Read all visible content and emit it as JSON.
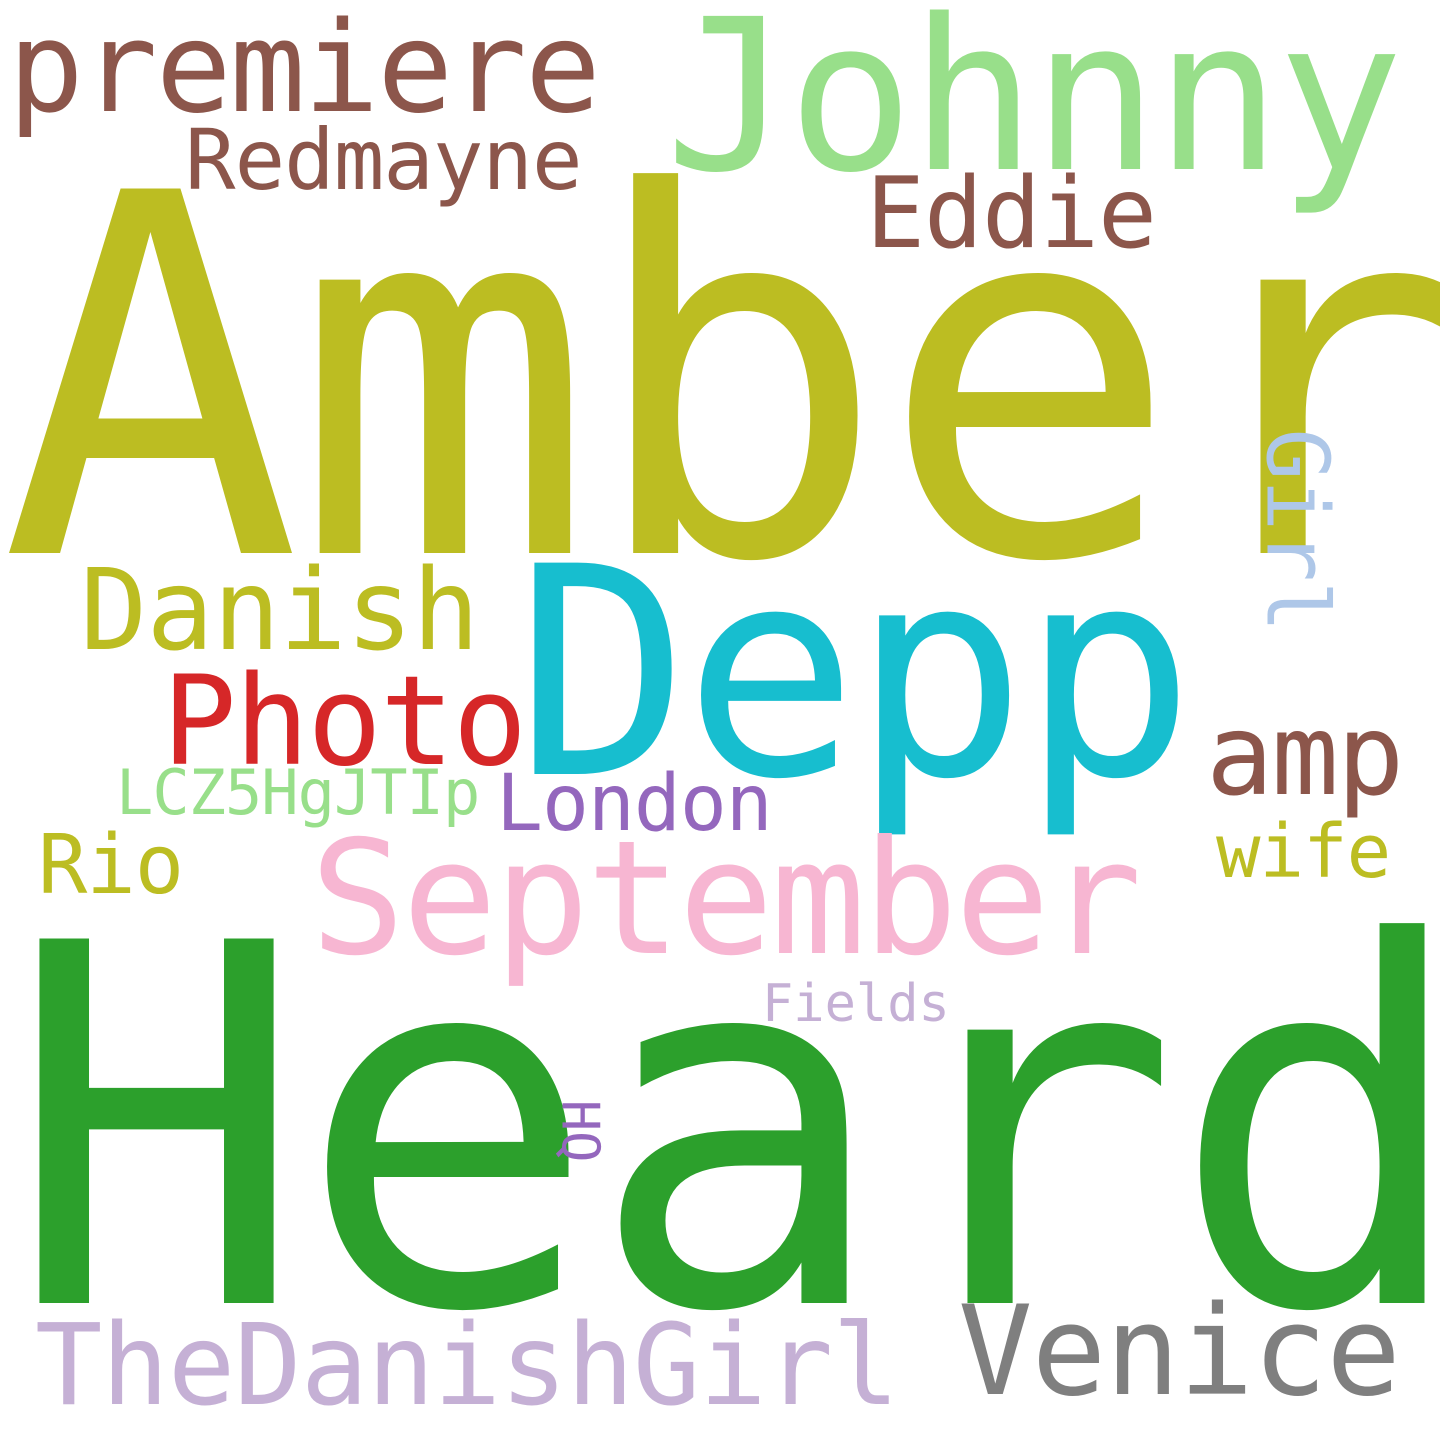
{
  "wordcloud": {
    "words": [
      {
        "text": "Amber",
        "color": "#bcbd22"
      },
      {
        "text": "Heard",
        "color": "#2ca02c"
      },
      {
        "text": "Depp",
        "color": "#17becf"
      },
      {
        "text": "Johnny",
        "color": "#98df8a"
      },
      {
        "text": "premiere",
        "color": "#8c564b"
      },
      {
        "text": "September",
        "color": "#f7b6d2"
      },
      {
        "text": "TheDanishGirl",
        "color": "#c5b0d5"
      },
      {
        "text": "Venice",
        "color": "#7f7f7f"
      },
      {
        "text": "Photo",
        "color": "#d62728"
      },
      {
        "text": "Danish",
        "color": "#bcbd22"
      },
      {
        "text": "Redmayne",
        "color": "#8c564b"
      },
      {
        "text": "Eddie",
        "color": "#8c564b"
      },
      {
        "text": "amp",
        "color": "#8c564b"
      },
      {
        "text": "Girl",
        "color": "#aec7e8"
      },
      {
        "text": "London",
        "color": "#9467bd"
      },
      {
        "text": "LCZ5HgJTIp",
        "color": "#98df8a"
      },
      {
        "text": "Rio",
        "color": "#bcbd22"
      },
      {
        "text": "wife",
        "color": "#bcbd22"
      },
      {
        "text": "Fields",
        "color": "#c5b0d5"
      },
      {
        "text": "HQ",
        "color": "#9467bd"
      }
    ]
  }
}
